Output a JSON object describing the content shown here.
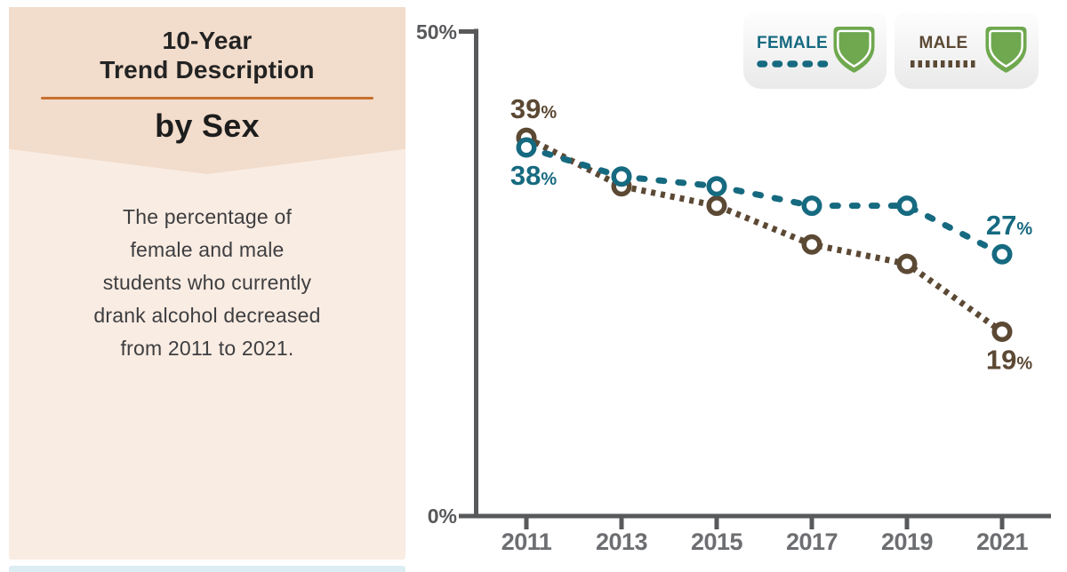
{
  "panel": {
    "title_line1": "10-Year",
    "title_line2": "Trend Description",
    "subtitle": "by Sex",
    "description_lines": [
      "The percentage of",
      "female and male",
      "students who currently",
      "drank alcohol decreased",
      "from 2011 to 2021."
    ]
  },
  "legend": {
    "female": {
      "label": "FEMALE",
      "color": "#166a80",
      "pattern": "dashed",
      "icon": "shield"
    },
    "male": {
      "label": "MALE",
      "color": "#5c4934",
      "pattern": "dotted",
      "icon": "shield"
    }
  },
  "colors": {
    "female_teal": "#166a80",
    "male_brown": "#5c4934",
    "shield_green": "#6fa84f",
    "axis_gray": "#58595b",
    "year_label_gray": "#6d6e71",
    "panel_header_bg": "#f2dccb",
    "panel_body_bg": "#f9ece3",
    "divider_orange": "#c8702f",
    "footer_stripe_blue": "#dcedf3"
  },
  "chart_data": {
    "type": "line",
    "x": [
      "2011",
      "2013",
      "2015",
      "2017",
      "2019",
      "2021"
    ],
    "series": [
      {
        "name": "Female",
        "values": [
          38,
          35,
          34,
          32,
          32,
          27
        ],
        "color": "#166a80",
        "line_style": "dashed"
      },
      {
        "name": "Male",
        "values": [
          39,
          34,
          32,
          28,
          26,
          19
        ],
        "color": "#5c4934",
        "line_style": "dotted"
      }
    ],
    "ylim": [
      0,
      50
    ],
    "y_axis_labels": {
      "top": "50%",
      "bottom": "0%"
    },
    "point_labels": [
      {
        "number": "39",
        "suffix": "%",
        "series": "Male",
        "x": "2011",
        "placement": "above"
      },
      {
        "number": "38",
        "suffix": "%",
        "series": "Female",
        "x": "2011",
        "placement": "below"
      },
      {
        "number": "27",
        "suffix": "%",
        "series": "Female",
        "x": "2021",
        "placement": "above"
      },
      {
        "number": "19",
        "suffix": "%",
        "series": "Male",
        "x": "2021",
        "placement": "below"
      }
    ],
    "grid": false,
    "legend_position": "top-right"
  }
}
